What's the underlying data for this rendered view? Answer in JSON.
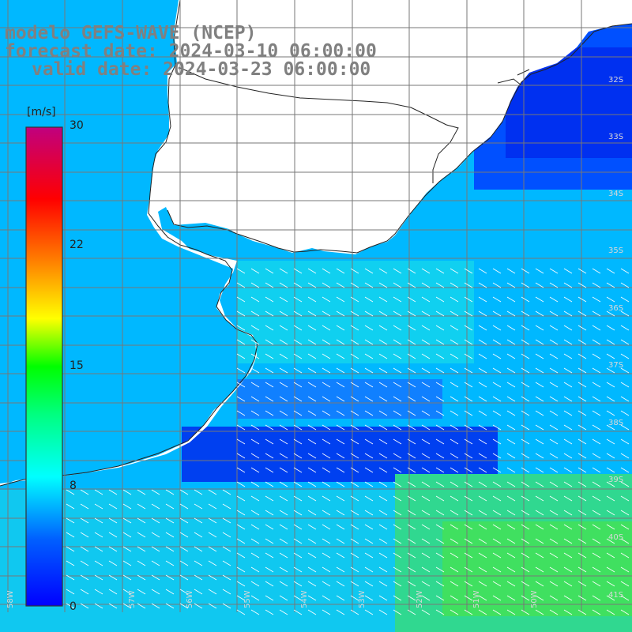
{
  "title": {
    "line1": "modelo GEFS-WAVE (NCEP)",
    "line2": "forecast date: 2024-03-10 06:00:00",
    "line3": "valid date: 2024-03-23 06:00:00"
  },
  "colorbar": {
    "unit": "[m/s]",
    "ticks": [
      "30",
      "22",
      "15",
      "8",
      "0"
    ],
    "tick_values": [
      30,
      22,
      15,
      8,
      0
    ],
    "min": 0,
    "max": 30,
    "colors": [
      "#0000ff",
      "#00a0ff",
      "#00ffff",
      "#00ff00",
      "#ffff00",
      "#ff8000",
      "#ff0000",
      "#c0007f"
    ]
  },
  "map": {
    "lat_labels": [
      "32S",
      "33S",
      "34S",
      "35S",
      "36S",
      "37S",
      "38S",
      "39S",
      "40S",
      "41S"
    ],
    "lon_labels": [
      "58W",
      "57W",
      "56W",
      "55W",
      "54W",
      "53W",
      "52W",
      "51W",
      "50W"
    ],
    "land_color": "#ffffff",
    "grid_color": "#777777",
    "arrow_color": "#ffffff",
    "field_note_colors": {
      "low": "#0038f0",
      "mid": "#00b8ff",
      "high": "#40e060"
    }
  }
}
